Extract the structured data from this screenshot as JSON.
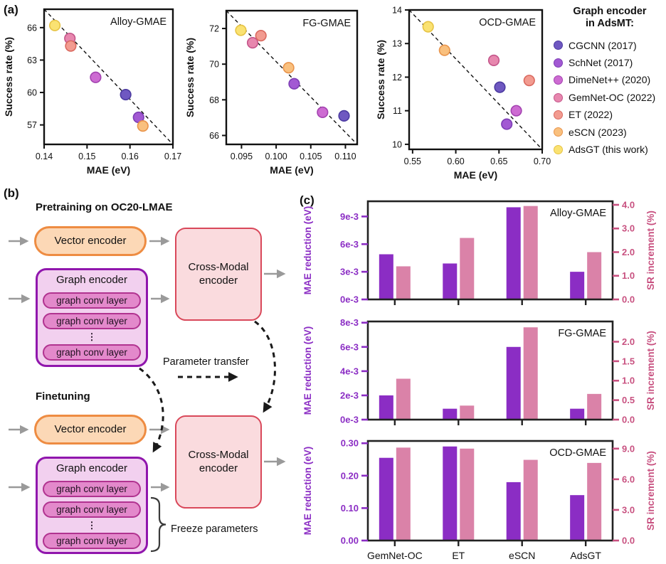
{
  "panels": {
    "a": "(a)",
    "b": "(b)",
    "c": "(c)"
  },
  "legend": {
    "title_line1": "Graph encoder",
    "title_line2": "in AdsMT:",
    "entries": [
      {
        "key": "CGCNN",
        "label": "CGCNN (2017)",
        "fill": "#6f58c1",
        "stroke": "#4c3ba1"
      },
      {
        "key": "SchNet",
        "label": "SchNet (2017)",
        "fill": "#a259d3",
        "stroke": "#7d3eb5"
      },
      {
        "key": "DimeNetPP",
        "label": "DimeNet++ (2020)",
        "fill": "#cd6bd2",
        "stroke": "#a342b0"
      },
      {
        "key": "GemNetOC",
        "label": "GemNet-OC (2022)",
        "fill": "#e787ae",
        "stroke": "#c4558a"
      },
      {
        "key": "ET",
        "label": "ET (2022)",
        "fill": "#f29b90",
        "stroke": "#da695f"
      },
      {
        "key": "eSCN",
        "label": "eSCN (2023)",
        "fill": "#f9c07e",
        "stroke": "#e9944b"
      },
      {
        "key": "AdsGT",
        "label": "AdsGT (this work)",
        "fill": "#fae272",
        "stroke": "#e6c344"
      }
    ]
  },
  "chart_data": [
    {
      "type": "scatter",
      "title": "Alloy-GMAE",
      "xlabel": "MAE (eV)",
      "ylabel": "Success rate (%)",
      "xlim": [
        0.14,
        0.17
      ],
      "ylim": [
        55.2,
        67.7
      ],
      "xticks": [
        {
          "v": 0.14,
          "label": "0.14"
        },
        {
          "v": 0.15,
          "label": "0.15"
        },
        {
          "v": 0.16,
          "label": "0.16"
        },
        {
          "v": 0.17,
          "label": "0.17"
        }
      ],
      "yticks": [
        {
          "v": 57,
          "label": "57"
        },
        {
          "v": 60,
          "label": "60"
        },
        {
          "v": 63,
          "label": "63"
        },
        {
          "v": 66,
          "label": "66"
        }
      ],
      "diagonal_dashed_line": true,
      "points": [
        {
          "series": "CGCNN",
          "x": 0.159,
          "y": 59.8
        },
        {
          "series": "SchNet",
          "x": 0.162,
          "y": 57.7
        },
        {
          "series": "DimeNetPP",
          "x": 0.152,
          "y": 61.4
        },
        {
          "series": "GemNetOC",
          "x": 0.146,
          "y": 65.0
        },
        {
          "series": "ET",
          "x": 0.1462,
          "y": 64.3
        },
        {
          "series": "eSCN",
          "x": 0.163,
          "y": 56.9
        },
        {
          "series": "AdsGT",
          "x": 0.1425,
          "y": 66.2
        }
      ]
    },
    {
      "type": "scatter",
      "title": "FG-GMAE",
      "xlabel": "MAE (eV)",
      "ylabel": "Success rate (%)",
      "xlim": [
        0.0928,
        0.1117
      ],
      "ylim": [
        65.5,
        73.0
      ],
      "xticks": [
        {
          "v": 0.095,
          "label": "0.095"
        },
        {
          "v": 0.1,
          "label": "0.100"
        },
        {
          "v": 0.105,
          "label": "0.105"
        },
        {
          "v": 0.11,
          "label": "0.110"
        }
      ],
      "yticks": [
        {
          "v": 66,
          "label": "66"
        },
        {
          "v": 68,
          "label": "68"
        },
        {
          "v": 70,
          "label": "70"
        },
        {
          "v": 72,
          "label": "72"
        }
      ],
      "diagonal_dashed_line": true,
      "points": [
        {
          "series": "CGCNN",
          "x": 0.1098,
          "y": 67.1
        },
        {
          "series": "SchNet",
          "x": 0.1026,
          "y": 68.9
        },
        {
          "series": "DimeNetPP",
          "x": 0.1067,
          "y": 67.3
        },
        {
          "series": "GemNetOC",
          "x": 0.0966,
          "y": 71.2
        },
        {
          "series": "ET",
          "x": 0.0978,
          "y": 71.6
        },
        {
          "series": "eSCN",
          "x": 0.1018,
          "y": 69.8
        },
        {
          "series": "AdsGT",
          "x": 0.0949,
          "y": 71.9
        }
      ]
    },
    {
      "type": "scatter",
      "title": "OCD-GMAE",
      "xlabel": "MAE (eV)",
      "ylabel": "Success rate (%)",
      "xlim": [
        0.546,
        0.7
      ],
      "ylim": [
        9.85,
        14.0
      ],
      "xticks": [
        {
          "v": 0.55,
          "label": "0.55"
        },
        {
          "v": 0.6,
          "label": "0.60"
        },
        {
          "v": 0.65,
          "label": "0.65"
        },
        {
          "v": 0.7,
          "label": "0.70"
        }
      ],
      "yticks": [
        {
          "v": 10,
          "label": "10"
        },
        {
          "v": 11,
          "label": "11"
        },
        {
          "v": 12,
          "label": "12"
        },
        {
          "v": 13,
          "label": "13"
        },
        {
          "v": 14,
          "label": "14"
        }
      ],
      "diagonal_dashed_line": true,
      "points": [
        {
          "series": "CGCNN",
          "x": 0.651,
          "y": 11.7
        },
        {
          "series": "SchNet",
          "x": 0.659,
          "y": 10.6
        },
        {
          "series": "DimeNetPP",
          "x": 0.67,
          "y": 11.0
        },
        {
          "series": "GemNetOC",
          "x": 0.644,
          "y": 12.5
        },
        {
          "series": "ET",
          "x": 0.685,
          "y": 11.9
        },
        {
          "series": "eSCN",
          "x": 0.587,
          "y": 12.8
        },
        {
          "series": "AdsGT",
          "x": 0.568,
          "y": 13.5
        }
      ]
    },
    {
      "type": "grouped_bar",
      "title": "Alloy-GMAE",
      "categories": [
        "GemNet-OC",
        "ET",
        "eSCN",
        "AdsGT"
      ],
      "show_category_labels": false,
      "left_axis": {
        "label": "MAE reduction (eV)",
        "color": "#8b2dc4",
        "unit_scale": "1e-3",
        "max": 10.65,
        "ticks": [
          {
            "v": 0,
            "label": "0e-3"
          },
          {
            "v": 3,
            "label": "3e-3"
          },
          {
            "v": 6,
            "label": "6e-3"
          },
          {
            "v": 9,
            "label": "9e-3"
          }
        ]
      },
      "right_axis": {
        "label": "SR increment (%)",
        "color": "#c85180",
        "max": 4.15,
        "ticks": [
          {
            "v": 0,
            "label": "0.0"
          },
          {
            "v": 1,
            "label": "1.0"
          },
          {
            "v": 2,
            "label": "2.0"
          },
          {
            "v": 3,
            "label": "3.0"
          },
          {
            "v": 4,
            "label": "4.0"
          }
        ]
      },
      "series": [
        {
          "name": "MAE reduction (eV)",
          "axis": "left",
          "color": "#8b2dc4",
          "values": [
            4.9,
            3.9,
            10.0,
            3.0
          ]
        },
        {
          "name": "SR increment (%)",
          "axis": "right",
          "color": "#da82a8",
          "values": [
            1.4,
            2.6,
            3.95,
            2.0
          ]
        }
      ]
    },
    {
      "type": "grouped_bar",
      "title": "FG-GMAE",
      "categories": [
        "GemNet-OC",
        "ET",
        "eSCN",
        "AdsGT"
      ],
      "show_category_labels": false,
      "left_axis": {
        "label": "MAE reduction (eV)",
        "color": "#8b2dc4",
        "unit_scale": "1e-3",
        "max": 8.1,
        "ticks": [
          {
            "v": 0,
            "label": "0e-3"
          },
          {
            "v": 2,
            "label": "2e-3"
          },
          {
            "v": 4,
            "label": "4e-3"
          },
          {
            "v": 6,
            "label": "6e-3"
          },
          {
            "v": 8,
            "label": "8e-3"
          }
        ]
      },
      "right_axis": {
        "label": "SR increment (%)",
        "color": "#c85180",
        "max": 2.52,
        "ticks": [
          {
            "v": 0,
            "label": "0.0"
          },
          {
            "v": 0.5,
            "label": "0.5"
          },
          {
            "v": 1,
            "label": "1.0"
          },
          {
            "v": 1.5,
            "label": "1.5"
          },
          {
            "v": 2,
            "label": "2.0"
          }
        ]
      },
      "series": [
        {
          "name": "MAE reduction (eV)",
          "axis": "left",
          "color": "#8b2dc4",
          "values": [
            2.0,
            0.9,
            6.0,
            0.9
          ]
        },
        {
          "name": "SR increment (%)",
          "axis": "right",
          "color": "#da82a8",
          "values": [
            1.05,
            0.36,
            2.37,
            0.66
          ]
        }
      ]
    },
    {
      "type": "grouped_bar",
      "title": "OCD-GMAE",
      "categories": [
        "GemNet-OC",
        "ET",
        "eSCN",
        "AdsGT"
      ],
      "show_category_labels": true,
      "left_axis": {
        "label": "MAE reduction (eV)",
        "color": "#8b2dc4",
        "max": 0.307,
        "ticks": [
          {
            "v": 0,
            "label": "0.00"
          },
          {
            "v": 0.1,
            "label": "0.10"
          },
          {
            "v": 0.2,
            "label": "0.20"
          },
          {
            "v": 0.3,
            "label": "0.30"
          }
        ]
      },
      "right_axis": {
        "label": "SR increment (%)",
        "color": "#c85180",
        "max": 9.75,
        "ticks": [
          {
            "v": 0,
            "label": "0.0"
          },
          {
            "v": 3,
            "label": "3.0"
          },
          {
            "v": 6,
            "label": "6.0"
          },
          {
            "v": 9,
            "label": "9.0"
          }
        ]
      },
      "series": [
        {
          "name": "MAE reduction (eV)",
          "axis": "left",
          "color": "#8b2dc4",
          "values": [
            0.255,
            0.29,
            0.18,
            0.14
          ]
        },
        {
          "name": "SR increment (%)",
          "axis": "right",
          "color": "#da82a8",
          "values": [
            9.1,
            9.0,
            7.9,
            7.6
          ]
        }
      ]
    }
  ],
  "diagram": {
    "pretraining_title": "Pretraining on OC20-LMAE",
    "finetuning_title": "Finetuning",
    "vector_encoder": "Vector encoder",
    "graph_encoder": "Graph encoder",
    "conv_layer": "graph conv layer",
    "dots": "⋮",
    "cross_modal": "Cross-Modal encoder",
    "parameter_transfer": "Parameter transfer",
    "freeze_parameters": "Freeze parameters",
    "colors": {
      "vector_fill": "#fcd8b6",
      "vector_border": "#ee8c42",
      "graph_fill": "#f2d0ef",
      "graph_border": "#9016ad",
      "conv_fill": "#e389cb",
      "conv_border": "#b13390",
      "cross_fill": "#fadbde",
      "cross_border": "#d9485a",
      "arrow_gray": "#9a9a9a",
      "arrow_black": "#1a1a1a"
    }
  }
}
